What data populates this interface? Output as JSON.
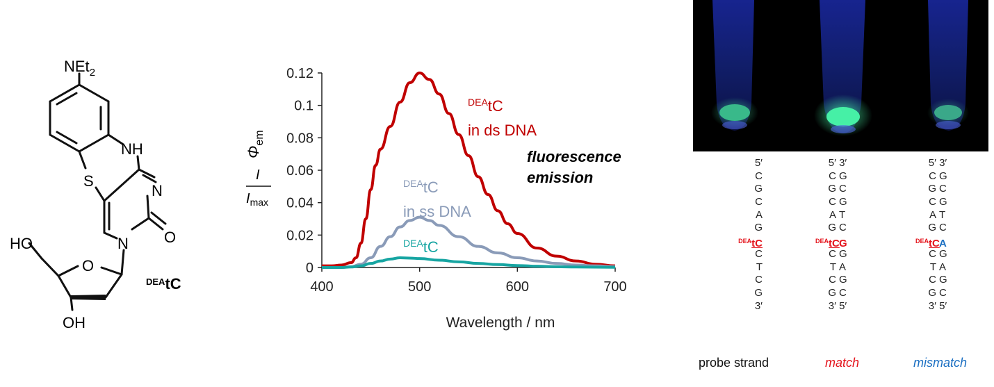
{
  "structure": {
    "amine_label": "NEt",
    "amine_subscript": "2",
    "nh_label": "NH",
    "s_label": "S",
    "n_label": "N",
    "carbonyl_o_label": "O",
    "ring_n_label": "N",
    "ho_label": "HO",
    "ring_o_label": "O",
    "oh_label": "OH",
    "compound_superscript": "DEA",
    "compound_name": "tC"
  },
  "chart_data": {
    "type": "line",
    "x_label": "Wavelength / nm",
    "y_label": {
      "frac_num": "I",
      "frac_den": "I",
      "frac_den_sub": "max",
      "phi": "Φ",
      "phi_sub": "em"
    },
    "xlim": [
      400,
      700
    ],
    "ylim": [
      0,
      0.12
    ],
    "x_ticks": [
      400,
      500,
      600,
      700
    ],
    "y_ticks": [
      0,
      0.02,
      0.04,
      0.06,
      0.08,
      0.1,
      0.12
    ],
    "y_tick_labels": [
      "0",
      "0.02",
      "0.04",
      "0.06",
      "0.08",
      "0.1",
      "0.12"
    ],
    "grid": false,
    "annotation": [
      "fluorescence",
      "emission"
    ],
    "series": [
      {
        "label_sup": "DEA",
        "label_main": "tC",
        "label_line2": "in ds DNA",
        "color": "#c00000",
        "x": [
          400,
          410,
          420,
          430,
          435,
          440,
          445,
          450,
          455,
          460,
          470,
          480,
          490,
          500,
          510,
          520,
          530,
          540,
          550,
          560,
          570,
          580,
          590,
          600,
          620,
          640,
          660,
          680,
          700
        ],
        "y": [
          0.001,
          0.001,
          0.0015,
          0.003,
          0.006,
          0.015,
          0.03,
          0.048,
          0.063,
          0.073,
          0.087,
          0.102,
          0.114,
          0.12,
          0.116,
          0.107,
          0.095,
          0.082,
          0.069,
          0.056,
          0.045,
          0.035,
          0.027,
          0.021,
          0.012,
          0.007,
          0.004,
          0.002,
          0.001
        ]
      },
      {
        "label_sup": "DEA",
        "label_main": "tC",
        "label_line2": "in ss DNA",
        "color": "#8a9bb8",
        "x": [
          400,
          420,
          430,
          440,
          450,
          460,
          470,
          480,
          490,
          500,
          510,
          520,
          540,
          560,
          580,
          600,
          620,
          640,
          660,
          680,
          700
        ],
        "y": [
          0,
          0,
          0.0005,
          0.002,
          0.006,
          0.013,
          0.019,
          0.025,
          0.029,
          0.031,
          0.029,
          0.026,
          0.019,
          0.013,
          0.009,
          0.006,
          0.004,
          0.0025,
          0.0015,
          0.001,
          0.0005
        ]
      },
      {
        "label_sup": "DEA",
        "label_main": "tC",
        "label_line2": "",
        "color": "#17a5a2",
        "x": [
          400,
          420,
          430,
          440,
          450,
          460,
          470,
          480,
          490,
          500,
          520,
          540,
          560,
          580,
          600,
          620,
          640,
          660,
          700
        ],
        "y": [
          0,
          0,
          0.0003,
          0.001,
          0.0025,
          0.004,
          0.0052,
          0.006,
          0.0058,
          0.0055,
          0.0045,
          0.0035,
          0.0025,
          0.0018,
          0.0012,
          0.0008,
          0.0005,
          0.0003,
          0.0001
        ]
      }
    ]
  },
  "dna": {
    "prime5": "5′",
    "prime3": "3′",
    "probe_bases": [
      "C",
      "G",
      "C",
      "A",
      "G",
      "tC",
      "C",
      "T",
      "C",
      "G"
    ],
    "complement_match": [
      "G",
      "C",
      "G",
      "T",
      "C",
      "G",
      "G",
      "A",
      "G",
      "C"
    ],
    "complement_mismatch": [
      "G",
      "C",
      "G",
      "T",
      "C",
      "A",
      "G",
      "A",
      "G",
      "C"
    ],
    "mod_sup": "DEA",
    "mod_main": "tC",
    "captions": {
      "probe": "probe strand",
      "match": "match",
      "mismatch": "mismatch"
    },
    "caption_colors": {
      "probe": "#111111",
      "match": "#e4141c",
      "mismatch": "#1b6fc2"
    },
    "photo_glow": {
      "left": "#39b98a",
      "middle": "#46f0a6",
      "right": "#3aa889"
    }
  }
}
